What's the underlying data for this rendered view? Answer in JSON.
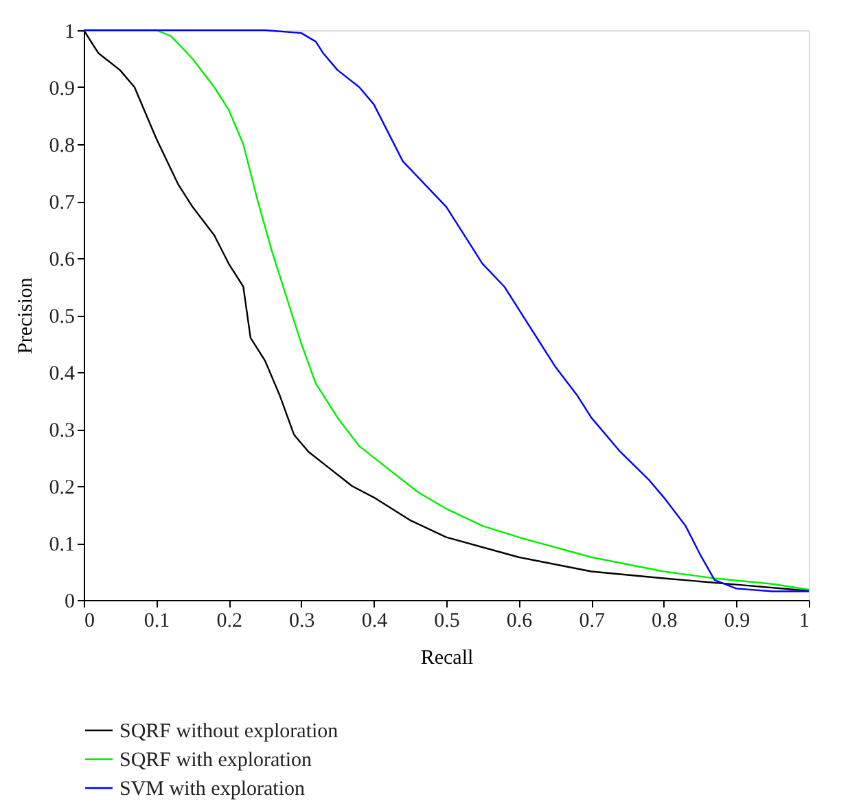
{
  "chart_data": {
    "type": "line",
    "xlabel": "Recall",
    "ylabel": "Precision",
    "xlim": [
      0,
      1
    ],
    "ylim": [
      0,
      1
    ],
    "xticks": [
      0,
      0.1,
      0.2,
      0.3,
      0.4,
      0.5,
      0.6,
      0.7,
      0.8,
      0.9,
      1
    ],
    "yticks": [
      0,
      0.1,
      0.2,
      0.3,
      0.4,
      0.5,
      0.6,
      0.7,
      0.8,
      0.9,
      1
    ],
    "grid": false,
    "legend": "bottom",
    "marker": "none",
    "line_style": "solid",
    "series": [
      {
        "name": "SQRF without exploration",
        "color": "#000000",
        "x": [
          0,
          0.02,
          0.05,
          0.07,
          0.1,
          0.13,
          0.15,
          0.18,
          0.2,
          0.22,
          0.23,
          0.25,
          0.27,
          0.29,
          0.31,
          0.34,
          0.37,
          0.4,
          0.45,
          0.5,
          0.6,
          0.7,
          0.8,
          0.9,
          1
        ],
        "values": [
          1,
          0.96,
          0.93,
          0.9,
          0.81,
          0.73,
          0.69,
          0.64,
          0.59,
          0.55,
          0.46,
          0.42,
          0.36,
          0.29,
          0.26,
          0.23,
          0.2,
          0.18,
          0.14,
          0.11,
          0.075,
          0.05,
          0.038,
          0.027,
          0.016
        ]
      },
      {
        "name": "SQRF with exploration",
        "color": "#00ee00",
        "x": [
          0,
          0.1,
          0.12,
          0.15,
          0.18,
          0.2,
          0.22,
          0.24,
          0.26,
          0.28,
          0.3,
          0.32,
          0.35,
          0.38,
          0.42,
          0.46,
          0.5,
          0.55,
          0.6,
          0.7,
          0.8,
          0.87,
          0.95,
          1
        ],
        "values": [
          1,
          1,
          0.99,
          0.95,
          0.9,
          0.86,
          0.8,
          0.7,
          0.61,
          0.53,
          0.45,
          0.38,
          0.32,
          0.27,
          0.23,
          0.19,
          0.16,
          0.13,
          0.11,
          0.075,
          0.05,
          0.038,
          0.028,
          0.018
        ]
      },
      {
        "name": "SVM with exploration",
        "color": "#0000ff",
        "x": [
          0,
          0.25,
          0.3,
          0.32,
          0.33,
          0.35,
          0.38,
          0.4,
          0.42,
          0.44,
          0.47,
          0.5,
          0.53,
          0.55,
          0.58,
          0.6,
          0.63,
          0.65,
          0.68,
          0.7,
          0.74,
          0.78,
          0.8,
          0.83,
          0.85,
          0.87,
          0.9,
          0.95,
          1
        ],
        "values": [
          1,
          1,
          0.995,
          0.98,
          0.96,
          0.93,
          0.9,
          0.87,
          0.82,
          0.77,
          0.73,
          0.69,
          0.63,
          0.59,
          0.55,
          0.51,
          0.45,
          0.41,
          0.36,
          0.32,
          0.26,
          0.21,
          0.18,
          0.13,
          0.08,
          0.035,
          0.02,
          0.015,
          0.015
        ]
      }
    ]
  }
}
